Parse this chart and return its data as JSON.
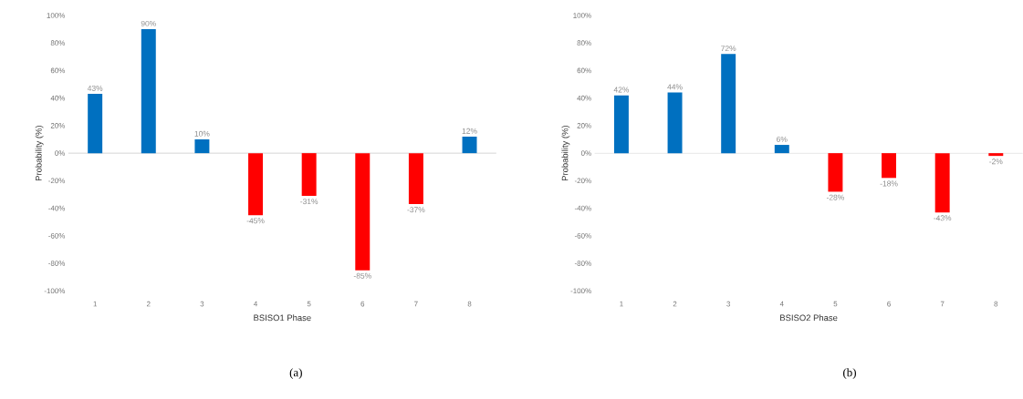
{
  "chart_data": [
    {
      "type": "bar",
      "xlabel": "BSISO1 Phase",
      "ylabel": "Probability (%)",
      "categories": [
        "1",
        "2",
        "3",
        "4",
        "5",
        "6",
        "7",
        "8"
      ],
      "values": [
        43,
        90,
        10,
        -45,
        -31,
        -85,
        -37,
        12
      ],
      "colors": [
        "#0070c0",
        "#0070c0",
        "#0070c0",
        "#ff0000",
        "#ff0000",
        "#ff0000",
        "#ff0000",
        "#0070c0"
      ],
      "value_labels": [
        "43%",
        "90%",
        "10%",
        "-45%",
        "-31%",
        "-85%",
        "-37%",
        "12%"
      ],
      "ylim": [
        -100,
        100
      ],
      "yticks": [
        {
          "value": -100,
          "label": "-100%"
        },
        {
          "value": -80,
          "label": "-80%"
        },
        {
          "value": -60,
          "label": "-60%"
        },
        {
          "value": -40,
          "label": "-40%"
        },
        {
          "value": -20,
          "label": "-20%"
        },
        {
          "value": 0,
          "label": "0%"
        },
        {
          "value": 20,
          "label": "20%"
        },
        {
          "value": 40,
          "label": "40%"
        },
        {
          "value": 60,
          "label": "60%"
        },
        {
          "value": 80,
          "label": "80%"
        },
        {
          "value": 100,
          "label": "100%"
        }
      ],
      "annotations": [
        "(a)"
      ]
    },
    {
      "type": "bar",
      "xlabel": "BSISO2 Phase",
      "ylabel": "Probability (%)",
      "categories": [
        "1",
        "2",
        "3",
        "4",
        "5",
        "6",
        "7",
        "8"
      ],
      "values": [
        42,
        44,
        72,
        6,
        -28,
        -18,
        -43,
        -2
      ],
      "colors": [
        "#0070c0",
        "#0070c0",
        "#0070c0",
        "#0070c0",
        "#ff0000",
        "#ff0000",
        "#ff0000",
        "#ff0000"
      ],
      "value_labels": [
        "42%",
        "44%",
        "72%",
        "6%",
        "-28%",
        "-18%",
        "-43%",
        "-2%"
      ],
      "ylim": [
        -100,
        100
      ],
      "yticks": [
        {
          "value": -100,
          "label": "-100%"
        },
        {
          "value": -80,
          "label": "-80%"
        },
        {
          "value": -60,
          "label": "-60%"
        },
        {
          "value": -40,
          "label": "-40%"
        },
        {
          "value": -20,
          "label": "-20%"
        },
        {
          "value": 0,
          "label": "0%"
        },
        {
          "value": 20,
          "label": "20%"
        },
        {
          "value": 40,
          "label": "40%"
        },
        {
          "value": 60,
          "label": "60%"
        },
        {
          "value": 80,
          "label": "80%"
        },
        {
          "value": 100,
          "label": "100%"
        }
      ],
      "annotations": [
        "(b)"
      ]
    }
  ]
}
